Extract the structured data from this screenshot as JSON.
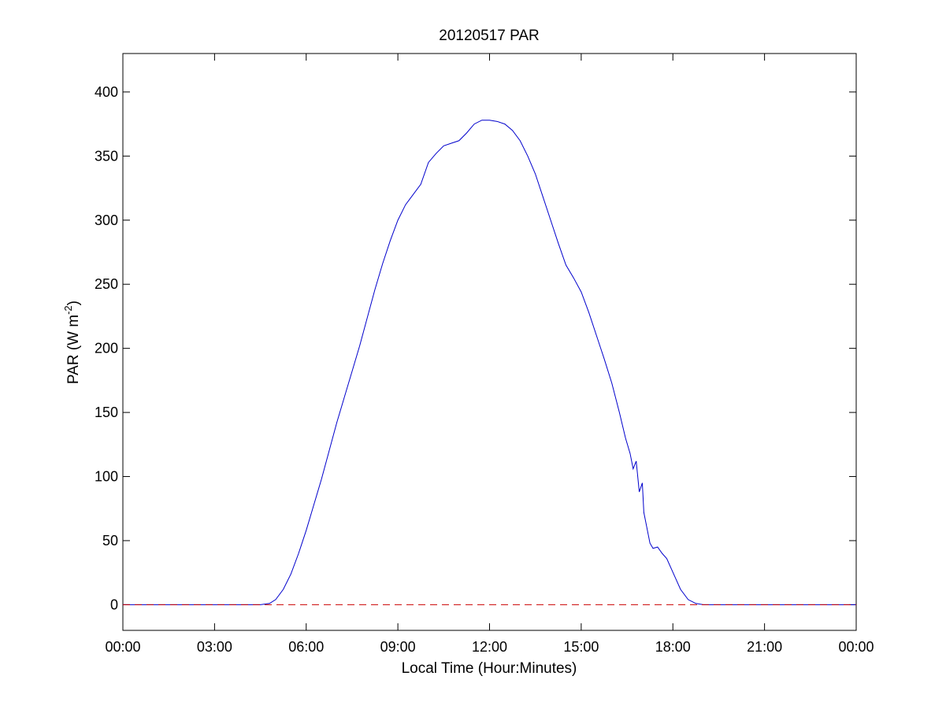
{
  "chart_data": {
    "type": "line",
    "title": "20120517 PAR",
    "xlabel": "Local Time (Hour:Minutes)",
    "ylabel": {
      "base": "PAR (W m",
      "superscript": "-2",
      "close": ")"
    },
    "x_unit": "hours",
    "xlim": [
      0,
      24
    ],
    "ylim": [
      -20,
      430
    ],
    "x_ticks": [
      0,
      3,
      6,
      9,
      12,
      15,
      18,
      21,
      24
    ],
    "x_tick_labels": [
      "00:00",
      "03:00",
      "06:00",
      "09:00",
      "12:00",
      "15:00",
      "18:00",
      "21:00",
      "00:00"
    ],
    "y_ticks": [
      0,
      50,
      100,
      150,
      200,
      250,
      300,
      350,
      400
    ],
    "y_tick_labels": [
      "0",
      "50",
      "100",
      "150",
      "200",
      "250",
      "300",
      "350",
      "400"
    ],
    "grid": false,
    "legend": "none",
    "series": [
      {
        "style": "solid",
        "color": "#0000cc",
        "x": [
          0,
          4.5,
          4.8,
          5.0,
          5.25,
          5.5,
          5.75,
          6.0,
          6.25,
          6.5,
          6.75,
          7.0,
          7.25,
          7.5,
          7.75,
          8.0,
          8.25,
          8.5,
          8.75,
          9.0,
          9.25,
          9.5,
          9.75,
          10.0,
          10.25,
          10.5,
          10.75,
          11.0,
          11.25,
          11.5,
          11.75,
          12.0,
          12.25,
          12.5,
          12.75,
          13.0,
          13.25,
          13.5,
          13.75,
          14.0,
          14.25,
          14.5,
          14.75,
          15.0,
          15.25,
          15.5,
          15.75,
          16.0,
          16.25,
          16.45,
          16.6,
          16.7,
          16.8,
          16.9,
          17.0,
          17.05,
          17.15,
          17.25,
          17.35,
          17.5,
          17.65,
          17.8,
          17.95,
          18.1,
          18.25,
          18.5,
          18.75,
          19.0,
          19.2,
          24
        ],
        "y": [
          0,
          0,
          1,
          4,
          12,
          24,
          40,
          58,
          78,
          98,
          120,
          142,
          162,
          182,
          202,
          224,
          246,
          266,
          284,
          300,
          312,
          320,
          328,
          345,
          352,
          358,
          360,
          362,
          368,
          375,
          378,
          378,
          377,
          375,
          370,
          362,
          350,
          336,
          318,
          300,
          282,
          265,
          255,
          244,
          228,
          210,
          192,
          173,
          150,
          130,
          118,
          106,
          112,
          88,
          95,
          72,
          60,
          48,
          44,
          45,
          40,
          36,
          28,
          20,
          12,
          4,
          1,
          0,
          0,
          0
        ]
      },
      {
        "style": "dashed",
        "color": "#cc0000",
        "x": [
          0,
          24
        ],
        "y": [
          0,
          0
        ]
      }
    ]
  }
}
